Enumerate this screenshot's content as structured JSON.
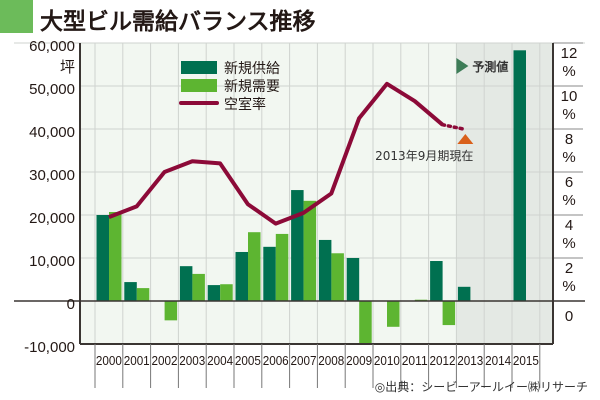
{
  "title": "大型ビル需給バランス推移",
  "source": "◎出典：シービーアールイー㈱リサーチ",
  "colors": {
    "supply": "#007050",
    "demand": "#5db531",
    "vacancy": "#8c0a38",
    "forecast_shade": "#e4e9e4",
    "marker": "#d9601a",
    "title_block": "#6cbb5a"
  },
  "chart_data": {
    "type": "bar",
    "title": "大型ビル需給バランス推移",
    "categories": [
      "2000",
      "2001",
      "2002",
      "2003",
      "2004",
      "2005",
      "2006",
      "2007",
      "2008",
      "2009",
      "2010",
      "2011",
      "2012",
      "2013",
      "2014",
      "2015"
    ],
    "left_axis": {
      "unit": "坪",
      "ylim": [
        -10000,
        60000
      ],
      "ticks": [
        "60,000",
        "50,000",
        "40,000",
        "30,000",
        "20,000",
        "10,000",
        "0",
        "-10,000"
      ]
    },
    "right_axis": {
      "unit": "%",
      "ylim": [
        -2.33,
        12
      ],
      "ticks": [
        "12",
        "10",
        "8",
        "6",
        "4",
        "2",
        "0"
      ]
    },
    "grid": true,
    "legend_placement": "top-left",
    "series": [
      {
        "name": "新規供給",
        "type": "bar",
        "values": [
          20000,
          4400,
          0,
          8100,
          3700,
          11400,
          12600,
          25800,
          14200,
          10000,
          0,
          0,
          9300,
          3300,
          null,
          58300
        ]
      },
      {
        "name": "新規需要",
        "type": "bar",
        "values": [
          20700,
          3000,
          -4500,
          6300,
          3900,
          16000,
          15600,
          23300,
          11100,
          -9800,
          -6000,
          300,
          -5600,
          null,
          null,
          null
        ]
      },
      {
        "name": "空室率",
        "type": "line",
        "axis": "right",
        "values": [
          3.9,
          4.4,
          6.0,
          6.5,
          6.4,
          4.5,
          3.6,
          4.1,
          5.0,
          8.5,
          10.1,
          9.3,
          8.2,
          null,
          null,
          null
        ],
        "dotted_extension_to": 8.0
      }
    ],
    "forecast_label": "予測値",
    "forecast_from": "2013",
    "annotation": "2013年9月期現在"
  }
}
